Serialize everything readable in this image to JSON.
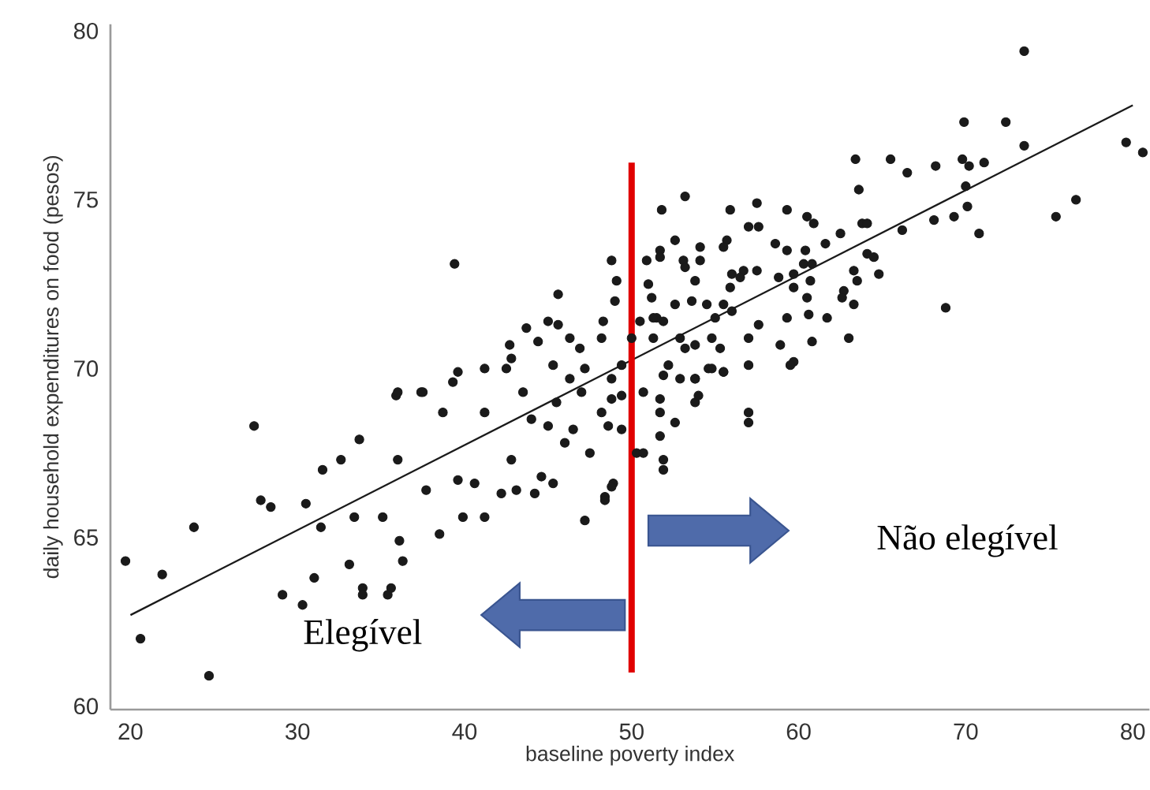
{
  "chart_data": {
    "type": "scatter",
    "xlabel": "baseline poverty index",
    "ylabel": "daily household expenditures on food (pesos)",
    "xlim": [
      18.8,
      81
    ],
    "ylim": [
      59.9,
      80.2
    ],
    "xticks": [
      20,
      30,
      40,
      50,
      60,
      70,
      80
    ],
    "yticks": [
      60,
      65,
      70,
      75,
      80
    ],
    "grid": false,
    "ref_lines": [
      {
        "axis": "x",
        "value": 50,
        "color": "#e00000"
      }
    ],
    "annotations": [
      "Elegível",
      "Não elegível"
    ],
    "series": [
      {
        "color": "#1a1a1a",
        "marker": "circle",
        "x": [
          19.7,
          20.6,
          21.9,
          23.8,
          24.7,
          27.4,
          27.8,
          28.4,
          29.1,
          30.3,
          30.5,
          31.0,
          31.5,
          31.4,
          32.6,
          33.1,
          33.4,
          33.7,
          33.9,
          33.9,
          35.4,
          35.6,
          36.1,
          36.3,
          35.1,
          35.9,
          36.0,
          37.4,
          38.5,
          37.7,
          38.7,
          39.9,
          41.2,
          39.6,
          40.6,
          39.6,
          41.2,
          42.2,
          43.1,
          44.2,
          45.3,
          42.8,
          44.6,
          42.5,
          45.0,
          46.3,
          47.2,
          47.5,
          48.4,
          48.9,
          48.2,
          39.4,
          48.8,
          49.1,
          49.0,
          45.6,
          45.0,
          45.6,
          43.7,
          44.4,
          46.3,
          46.9,
          48.3,
          48.2,
          42.7,
          42.8,
          41.2,
          36.0,
          37.5,
          39.3,
          45.3,
          47.2,
          73.5,
          69.9,
          72.4,
          73.5,
          79.6,
          80.6,
          63.4,
          65.5,
          66.5,
          68.2,
          69.8,
          70.2,
          71.1,
          63.6,
          70.0,
          70.1,
          69.3,
          68.1,
          70.8,
          66.2,
          75.4,
          76.6,
          68.8,
          63.8,
          64.1,
          62.5,
          61.6,
          64.1,
          64.5,
          64.8,
          63.3,
          63.5,
          62.7,
          62.6,
          63.3,
          63.0,
          61.7,
          60.8,
          60.6,
          59.7,
          58.9,
          59.3,
          57.6,
          57.0,
          57.0,
          57.5,
          55.9,
          53.2,
          51.8,
          59.3,
          60.5,
          60.9,
          57.0,
          57.6,
          58.6,
          59.3,
          60.4,
          55.7,
          55.5,
          54.1,
          52.6,
          51.7,
          51.7,
          50.9,
          53.1,
          53.2,
          54.1,
          56.0,
          56.7,
          57.5,
          55.9,
          56.5,
          53.8,
          58.8,
          59.7,
          60.3,
          60.8,
          59.7,
          60.7,
          60.5,
          51.0,
          51.2,
          51.5,
          51.9,
          52.6,
          53.6,
          54.5,
          55.0,
          55.5,
          56.0,
          52.9,
          53.2,
          53.8,
          54.8,
          55.3,
          52.2,
          53.8,
          54.6,
          55.5,
          51.3,
          51.3,
          50.0,
          50.5,
          49.4,
          48.8,
          48.8,
          49.4,
          50.7,
          51.9,
          52.9,
          53.8,
          54.8,
          55.5,
          51.7,
          51.7,
          52.6,
          51.7,
          51.9,
          51.9,
          53.8,
          54.0,
          57.0,
          57.0,
          50.3,
          50.7,
          49.4,
          48.6,
          48.8,
          48.4,
          59.5,
          44.0,
          45.5,
          46.5,
          47.0,
          43.5,
          46.0
        ],
        "values": [
          64.3,
          62.0,
          63.9,
          65.3,
          60.9,
          68.3,
          66.1,
          65.9,
          63.3,
          63.0,
          66.0,
          63.8,
          67.0,
          65.3,
          67.3,
          64.2,
          65.6,
          67.9,
          63.5,
          63.3,
          63.3,
          63.5,
          64.9,
          64.3,
          65.6,
          69.2,
          67.3,
          69.3,
          65.1,
          66.4,
          68.7,
          65.6,
          65.6,
          66.7,
          66.6,
          69.9,
          68.7,
          66.3,
          66.4,
          66.3,
          66.6,
          67.3,
          66.8,
          70.0,
          68.3,
          69.7,
          65.5,
          67.5,
          66.2,
          66.6,
          68.7,
          73.1,
          73.2,
          72.6,
          72.0,
          72.2,
          71.4,
          71.3,
          71.2,
          70.8,
          70.9,
          70.6,
          71.4,
          70.9,
          70.7,
          70.3,
          70.0,
          69.3,
          69.3,
          69.6,
          70.1,
          70.0,
          79.4,
          77.3,
          77.3,
          76.6,
          76.7,
          76.4,
          76.2,
          76.2,
          75.8,
          76.0,
          76.2,
          76.0,
          76.1,
          75.3,
          75.4,
          74.8,
          74.5,
          74.4,
          74.0,
          74.1,
          74.5,
          75.0,
          71.8,
          74.3,
          74.3,
          74.0,
          73.7,
          73.4,
          73.3,
          72.8,
          72.9,
          72.6,
          72.3,
          72.1,
          71.9,
          70.9,
          71.5,
          70.8,
          71.6,
          70.2,
          70.7,
          71.5,
          71.3,
          70.9,
          70.1,
          74.9,
          74.7,
          75.1,
          74.7,
          74.7,
          74.5,
          74.3,
          74.2,
          74.2,
          73.7,
          73.5,
          73.5,
          73.8,
          73.6,
          73.6,
          73.8,
          73.5,
          73.3,
          73.2,
          73.2,
          73.0,
          73.2,
          72.8,
          72.9,
          72.9,
          72.4,
          72.7,
          72.6,
          72.7,
          72.8,
          73.1,
          73.1,
          72.4,
          72.6,
          72.1,
          72.5,
          72.1,
          71.5,
          71.4,
          71.9,
          72.0,
          71.9,
          71.5,
          71.9,
          71.7,
          70.9,
          70.6,
          70.7,
          70.9,
          70.6,
          70.1,
          69.7,
          70.0,
          69.9,
          71.5,
          70.9,
          70.9,
          71.4,
          70.1,
          69.7,
          69.1,
          69.2,
          69.3,
          69.8,
          69.7,
          69.7,
          70.0,
          69.9,
          69.1,
          68.7,
          68.4,
          68.0,
          67.3,
          67.0,
          69.0,
          69.2,
          68.7,
          68.4,
          67.5,
          67.5,
          68.2,
          68.3,
          66.5,
          66.1,
          70.1,
          68.5,
          69.0,
          68.2,
          69.3,
          69.3,
          67.8
        ]
      },
      {
        "type": "line",
        "color": "#1a1a1a",
        "marker": "none",
        "x": [
          20,
          80
        ],
        "values": [
          62.7,
          77.8
        ]
      }
    ]
  }
}
